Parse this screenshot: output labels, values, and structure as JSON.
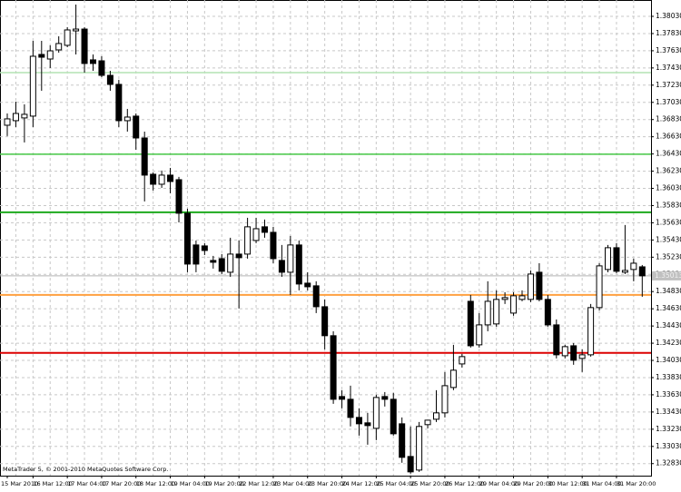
{
  "chart_data": {
    "type": "candlestick",
    "watermark": "MetaTrader 5, © 2001-2010 MetaQuotes Software Corp.",
    "categories": [
      "15 Mar 2010",
      null,
      null,
      "16 Mar 12:00",
      null,
      null,
      null,
      "17 Mar 04:00",
      null,
      null,
      null,
      "17 Mar 20:00",
      null,
      null,
      null,
      "18 Mar 12:00",
      null,
      null,
      null,
      "19 Mar 04:00",
      null,
      null,
      null,
      "19 Mar 20:00",
      null,
      null,
      null,
      "22 Mar 12:00",
      null,
      null,
      null,
      "23 Mar 04:00",
      null,
      null,
      null,
      "23 Mar 20:00",
      null,
      null,
      null,
      "24 Mar 12:00",
      null,
      null,
      null,
      "25 Mar 04:00",
      null,
      null,
      null,
      "25 Mar 20:00",
      null,
      null,
      null,
      "26 Mar 12:00",
      null,
      null,
      null,
      "29 Mar 04:00",
      null,
      null,
      null,
      "29 Mar 20:00",
      null,
      null,
      null,
      "30 Mar 12:00",
      null,
      null,
      null,
      "31 Mar 04:00",
      null,
      null,
      null,
      "31 Mar 20:00",
      null,
      null,
      null
    ],
    "open": [
      1.36764,
      1.36817,
      1.36849,
      1.3687,
      1.37587,
      1.37534,
      1.3764,
      1.37693,
      1.37861,
      1.37882,
      1.37524,
      1.37513,
      1.37344,
      1.37239,
      1.36817,
      1.3687,
      1.36616,
      1.36194,
      1.36078,
      1.36184,
      1.36131,
      1.35741,
      1.35372,
      1.35361,
      1.35192,
      1.35213,
      1.35055,
      1.35266,
      1.35266,
      1.35424,
      1.35583,
      1.35519,
      1.35192,
      1.35055,
      1.35372,
      1.34928,
      1.34897,
      1.34654,
      1.34317,
      1.3361,
      1.33578,
      1.33367,
      1.33304,
      1.3324,
      1.3361,
      1.33578,
      1.33293,
      1.32913,
      1.32755,
      1.33283,
      1.33346,
      1.3342,
      1.33715,
      1.33989,
      1.34717,
      1.34211,
      1.34443,
      1.34454,
      1.34739,
      1.3458,
      1.34739,
      1.34739,
      1.35055,
      1.34739,
      1.34443,
      1.34084,
      1.342,
      1.34053,
      1.34095,
      1.34644,
      1.35087,
      1.3534,
      1.35055,
      1.35087,
      1.35118
    ],
    "high": [
      1.36901,
      1.37038,
      1.37007,
      1.37745,
      1.37745,
      1.37693,
      1.37798,
      1.37904,
      1.38167,
      1.37904,
      1.37587,
      1.37566,
      1.37397,
      1.37292,
      1.36954,
      1.36901,
      1.3669,
      1.36216,
      1.36237,
      1.36268,
      1.36163,
      1.35794,
      1.35424,
      1.35393,
      1.35245,
      1.35266,
      1.35456,
      1.35424,
      1.35688,
      1.35688,
      1.35667,
      1.35583,
      1.35372,
      1.35477,
      1.35424,
      1.35055,
      1.3495,
      1.34739,
      1.34369,
      1.33684,
      1.33736,
      1.33473,
      1.3342,
      1.33631,
      1.33662,
      1.33652,
      1.33367,
      1.33262,
      1.33314,
      1.33335,
      1.33684,
      1.33895,
      1.34211,
      1.34106,
      1.34791,
      1.3458,
      1.3495,
      1.34844,
      1.34823,
      1.34823,
      1.34844,
      1.35076,
      1.3516,
      1.34791,
      1.34506,
      1.34211,
      1.34232,
      1.34158,
      1.34686,
      1.3516,
      1.35372,
      1.35393,
      1.35604,
      1.35213,
      1.35139
    ],
    "low": [
      1.36638,
      1.36743,
      1.36564,
      1.36743,
      1.37165,
      1.37429,
      1.37608,
      1.37671,
      1.37587,
      1.37376,
      1.37397,
      1.37323,
      1.37165,
      1.36743,
      1.3669,
      1.36479,
      1.35878,
      1.36005,
      1.36036,
      1.35973,
      1.35635,
      1.35055,
      1.35055,
      1.35255,
      1.35097,
      1.35034,
      1.35002,
      1.34633,
      1.35213,
      1.35393,
      1.35456,
      1.3516,
      1.35002,
      1.34791,
      1.34844,
      1.34844,
      1.3458,
      1.34158,
      1.33525,
      1.33473,
      1.33262,
      1.33156,
      1.3305,
      1.33103,
      1.33494,
      1.33156,
      1.3284,
      1.32713,
      1.32734,
      1.3324,
      1.33314,
      1.33367,
      1.33684,
      1.33947,
      1.34179,
      1.34179,
      1.34369,
      1.34422,
      1.34686,
      1.34549,
      1.34717,
      1.34707,
      1.34717,
      1.34422,
      1.34053,
      1.34053,
      1.33979,
      1.33895,
      1.34074,
      1.34612,
      1.35055,
      1.35044,
      1.35034,
      1.3495,
      1.3477
    ],
    "close": [
      1.36838,
      1.36901,
      1.36891,
      1.37566,
      1.37555,
      1.37629,
      1.37714,
      1.37872,
      1.37882,
      1.37482,
      1.37482,
      1.37344,
      1.37239,
      1.36817,
      1.36859,
      1.36616,
      1.36184,
      1.36078,
      1.36184,
      1.3611,
      1.35741,
      1.3515,
      1.3515,
      1.35308,
      1.35171,
      1.35066,
      1.35266,
      1.35224,
      1.35583,
      1.35561,
      1.35519,
      1.35213,
      1.35055,
      1.35372,
      1.34918,
      1.34886,
      1.34654,
      1.34317,
      1.33578,
      1.33578,
      1.33367,
      1.33293,
      1.33272,
      1.33599,
      1.33578,
      1.33177,
      1.32903,
      1.32734,
      1.33262,
      1.33335,
      1.3342,
      1.33736,
      1.33916,
      1.34074,
      1.342,
      1.34443,
      1.34717,
      1.34739,
      1.3476,
      1.34781,
      1.34781,
      1.35034,
      1.34739,
      1.34443,
      1.34095,
      1.3419,
      1.34032,
      1.34095,
      1.34644,
      1.35129,
      1.3534,
      1.35066,
      1.35076,
      1.3516,
      1.35013
    ],
    "up_color": "#ffffff",
    "down_color": "#000000",
    "ylim": [
      1.3269,
      1.3822
    ],
    "yticks": [
      {
        "value": 1.3283,
        "label": "1.32830"
      },
      {
        "value": 1.3303,
        "label": "1.33030"
      },
      {
        "value": 1.3323,
        "label": "1.33230"
      },
      {
        "value": 1.3343,
        "label": "1.33430"
      },
      {
        "value": 1.3363,
        "label": "1.33630"
      },
      {
        "value": 1.3383,
        "label": "1.33830"
      },
      {
        "value": 1.3403,
        "label": "1.34030"
      },
      {
        "value": 1.3423,
        "label": "1.34230"
      },
      {
        "value": 1.3443,
        "label": "1.34430"
      },
      {
        "value": 1.3463,
        "label": "1.34630"
      },
      {
        "value": 1.3483,
        "label": "1.34830"
      },
      {
        "value": 1.3503,
        "label": "1.35030"
      },
      {
        "value": 1.3523,
        "label": "1.35230"
      },
      {
        "value": 1.3543,
        "label": "1.35430"
      },
      {
        "value": 1.3563,
        "label": "1.35630"
      },
      {
        "value": 1.3583,
        "label": "1.35830"
      },
      {
        "value": 1.3603,
        "label": "1.36030"
      },
      {
        "value": 1.3623,
        "label": "1.36230"
      },
      {
        "value": 1.3643,
        "label": "1.36430"
      },
      {
        "value": 1.3663,
        "label": "1.36630"
      },
      {
        "value": 1.3683,
        "label": "1.36830"
      },
      {
        "value": 1.3703,
        "label": "1.37030"
      },
      {
        "value": 1.3723,
        "label": "1.37230"
      },
      {
        "value": 1.3743,
        "label": "1.37430"
      },
      {
        "value": 1.3763,
        "label": "1.37630"
      },
      {
        "value": 1.3783,
        "label": "1.37830"
      },
      {
        "value": 1.3803,
        "label": "1.38030"
      }
    ],
    "grid": true,
    "levels": [
      {
        "value": 1.37376,
        "color": "#b4e4b4"
      },
      {
        "value": 1.36427,
        "color": "#46c846"
      },
      {
        "value": 1.35752,
        "color": "#1eaa1e"
      },
      {
        "value": 1.34792,
        "color": "#ffa040"
      },
      {
        "value": 1.34117,
        "color": "#dc0000"
      }
    ],
    "current_price": {
      "value": 1.35013,
      "label": "1.35013"
    }
  }
}
